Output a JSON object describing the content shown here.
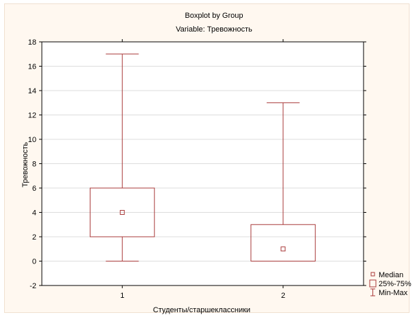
{
  "chart_data": {
    "type": "boxplot",
    "title": "Boxplot by Group",
    "subtitle": "Variable: Тревожность",
    "xlabel": "Студенты/старшеклассники",
    "ylabel": "Тревожность",
    "categories": [
      "1",
      "2"
    ],
    "ylim": [
      -2,
      18
    ],
    "yticks": [
      -2,
      0,
      2,
      4,
      6,
      8,
      10,
      12,
      14,
      16,
      18
    ],
    "grid": true,
    "legend_position": "bottom-right",
    "boxes": [
      {
        "category": "1",
        "median": 4,
        "q1": 2,
        "q3": 6,
        "min": 0,
        "max": 17
      },
      {
        "category": "2",
        "median": 1,
        "q1": 0,
        "q3": 3,
        "min": 0,
        "max": 13
      }
    ],
    "legend": [
      {
        "symbol": "median",
        "label": "Median"
      },
      {
        "symbol": "box",
        "label": "25%-75%"
      },
      {
        "symbol": "whisker",
        "label": "Min-Max"
      }
    ],
    "colors": {
      "box": "#a83838",
      "background": "#fff8f0",
      "plot_area": "#ffffff",
      "grid": "#dddddd"
    }
  }
}
